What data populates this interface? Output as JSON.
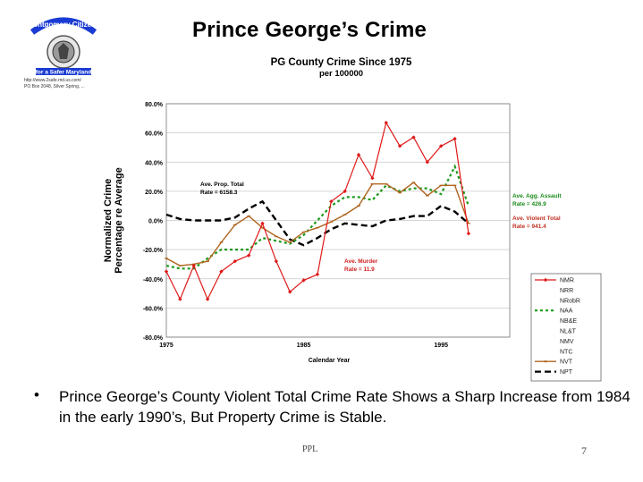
{
  "slide": {
    "title": "Prince George’s Crime",
    "bullet": "Prince George’s County Violent Total Crime Rate Shows a Sharp Increase from 1984 in the early 1990’s, But Property Crime is Stable.",
    "footer": "PPL",
    "page_number": "7"
  },
  "logo": {
    "lines": [
      "Montgomery Citizens",
      "for a Safer Maryland",
      "http://www.2safe.md.us.com/",
      "PO Box 2048, Silver Spring, ..."
    ]
  },
  "colors": {
    "NMR": "#e01818",
    "NAA": "#1a9a1a",
    "NVT": "#b0641e",
    "NPT": "#000000",
    "murder_label": "#d02020",
    "assault_label": "#1a8a1a",
    "violent_label": "#c03020"
  },
  "chart_data": {
    "type": "line",
    "title": "PG County Crime Since 1975",
    "subtitle": "per 100000",
    "xlabel": "Calendar Year",
    "ylabel": "Normalized Crime Percentage re Average",
    "xlim": [
      1975,
      2000
    ],
    "ylim": [
      -80,
      80
    ],
    "x_ticks": [
      "1975",
      "1985",
      "1995"
    ],
    "y_ticks": [
      "80.0%",
      "60.0%",
      "40.0%",
      "20.0%",
      "0.0%",
      "-20.0%",
      "-40.0%",
      "-60.0%",
      "-80.0%"
    ],
    "y_tick_values": [
      80,
      60,
      40,
      20,
      0,
      -20,
      -40,
      -60,
      -80
    ],
    "grid": true,
    "legend_position": "right",
    "legend": [
      "NMR",
      "NRR",
      "NRobR",
      "NAA",
      "NB&E",
      "NL&T",
      "NMV",
      "NTC",
      "NVT",
      "NPT"
    ],
    "series": [
      {
        "name": "NMR",
        "x": [
          1975,
          1976,
          1977,
          1978,
          1979,
          1980,
          1981,
          1982,
          1983,
          1984,
          1985,
          1986,
          1987,
          1988,
          1989,
          1990,
          1991,
          1992,
          1993,
          1994,
          1995,
          1996,
          1997
        ],
        "values": [
          -35,
          -54,
          -31,
          -54,
          -35,
          -28,
          -24,
          -2,
          -28,
          -49,
          -41,
          -37,
          13,
          20,
          45,
          29,
          67,
          51,
          57,
          40,
          51,
          56,
          -9
        ]
      },
      {
        "name": "NAA",
        "x": [
          1975,
          1976,
          1977,
          1978,
          1979,
          1980,
          1981,
          1982,
          1983,
          1984,
          1985,
          1986,
          1987,
          1988,
          1989,
          1990,
          1991,
          1992,
          1993,
          1994,
          1995,
          1996,
          1997
        ],
        "values": [
          -31,
          -33,
          -33,
          -26,
          -20,
          -20,
          -20,
          -12,
          -14,
          -16,
          -10,
          0,
          10,
          16,
          16,
          14,
          24,
          20,
          22,
          22,
          18,
          37,
          10
        ]
      },
      {
        "name": "NVT",
        "x": [
          1975,
          1976,
          1977,
          1978,
          1979,
          1980,
          1981,
          1982,
          1983,
          1984,
          1985,
          1986,
          1987,
          1988,
          1989,
          1990,
          1991,
          1992,
          1993,
          1994,
          1995,
          1996,
          1997
        ],
        "values": [
          -26,
          -31,
          -30,
          -28,
          -15,
          -3,
          3,
          -5,
          -11,
          -15,
          -8,
          -5,
          -1,
          4,
          10,
          25,
          25,
          19,
          26,
          17,
          24,
          24,
          -2
        ]
      },
      {
        "name": "NPT",
        "x": [
          1975,
          1976,
          1977,
          1978,
          1979,
          1980,
          1981,
          1982,
          1983,
          1984,
          1985,
          1986,
          1987,
          1988,
          1989,
          1990,
          1991,
          1992,
          1993,
          1994,
          1995,
          1996,
          1997
        ],
        "values": [
          4,
          1,
          0,
          0,
          0,
          2,
          8,
          13,
          0,
          -13,
          -17,
          -12,
          -6,
          -2,
          -3,
          -4,
          0,
          1,
          3,
          3,
          10,
          6,
          -2
        ]
      }
    ],
    "annotations": [
      {
        "lines": [
          "Ave. Prop. Total",
          "Rate = 6158.3"
        ],
        "color": "#000000"
      },
      {
        "lines": [
          "Ave. Murder",
          "Rate = 11.9"
        ],
        "color": "#d02020"
      },
      {
        "lines": [
          "Ave. Agg. Assault",
          "Rate = 426.9"
        ],
        "color": "#1a8a1a"
      },
      {
        "lines": [
          "Ave. Violent Total",
          "Rate = 941.4"
        ],
        "color": "#c03020"
      }
    ]
  }
}
